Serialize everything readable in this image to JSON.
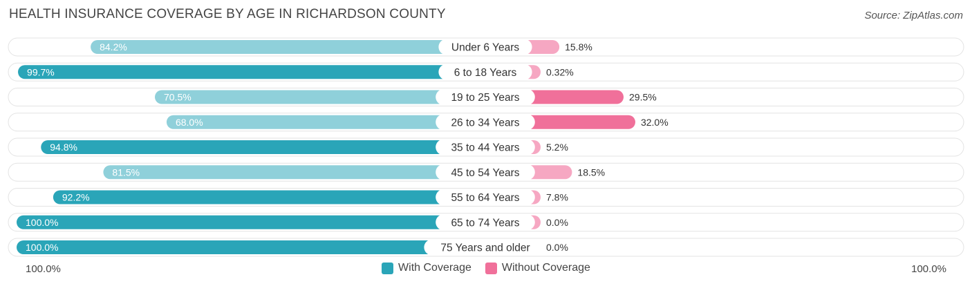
{
  "title": "HEALTH INSURANCE COVERAGE BY AGE IN RICHARDSON COUNTY",
  "source": "Source: ZipAtlas.com",
  "colors": {
    "with_strong": "#2aa5b8",
    "with_light": "#8fd0da",
    "without_strong": "#f0709a",
    "without_light": "#f6a7c2",
    "track": "#f1f1f1"
  },
  "axis": {
    "left_label": "100.0%",
    "right_label": "100.0%"
  },
  "legend": [
    {
      "label": "With Coverage",
      "color": "#2aa5b8"
    },
    {
      "label": "Without Coverage",
      "color": "#f0709a"
    }
  ],
  "chart_data": {
    "type": "bar",
    "orientation": "horizontal-diverging",
    "title": "HEALTH INSURANCE COVERAGE BY AGE IN RICHARDSON COUNTY",
    "categories": [
      "Under 6 Years",
      "6 to 18 Years",
      "19 to 25 Years",
      "26 to 34 Years",
      "35 to 44 Years",
      "45 to 54 Years",
      "55 to 64 Years",
      "65 to 74 Years",
      "75 Years and older"
    ],
    "series": [
      {
        "name": "With Coverage",
        "values": [
          84.2,
          99.7,
          70.5,
          68.0,
          94.8,
          81.5,
          92.2,
          100.0,
          100.0
        ],
        "labels": [
          "84.2%",
          "99.7%",
          "70.5%",
          "68.0%",
          "94.8%",
          "81.5%",
          "92.2%",
          "100.0%",
          "100.0%"
        ]
      },
      {
        "name": "Without Coverage",
        "values": [
          15.8,
          0.32,
          29.5,
          32.0,
          5.2,
          18.5,
          7.8,
          0.0,
          0.0
        ],
        "labels": [
          "15.8%",
          "0.32%",
          "29.5%",
          "32.0%",
          "5.2%",
          "18.5%",
          "7.8%",
          "0.0%",
          "0.0%"
        ]
      }
    ],
    "xlim": [
      0,
      100
    ],
    "legend_position": "bottom-center"
  }
}
